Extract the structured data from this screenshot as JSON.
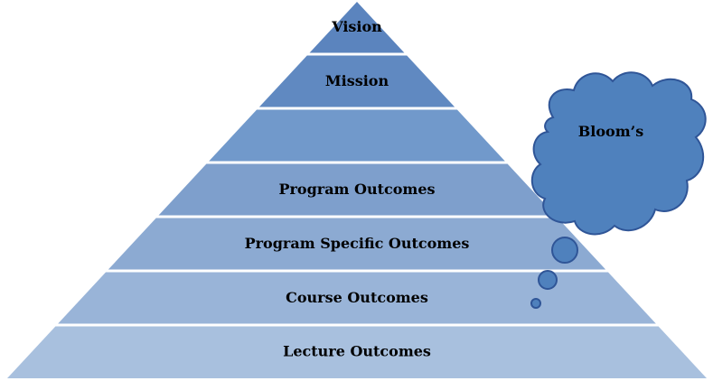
{
  "pyramid": {
    "layers": [
      {
        "label": "Vision",
        "color": "#5B84BE"
      },
      {
        "label": "Mission",
        "color": "#6089C1"
      },
      {
        "label": "",
        "color": "#7199CB"
      },
      {
        "label": "Program Outcomes",
        "color": "#7E9FCC"
      },
      {
        "label": "Program Specific Outcomes",
        "color": "#8CAAD2"
      },
      {
        "label": "Course Outcomes",
        "color": "#99B4D8"
      },
      {
        "label": "Lecture Outcomes",
        "color": "#A8C0DE"
      }
    ],
    "divider_color": "#FFFFFF"
  },
  "thought_cloud": {
    "label": "Bloom’s",
    "fill": "#4F81BD",
    "stroke": "#2F5597"
  }
}
